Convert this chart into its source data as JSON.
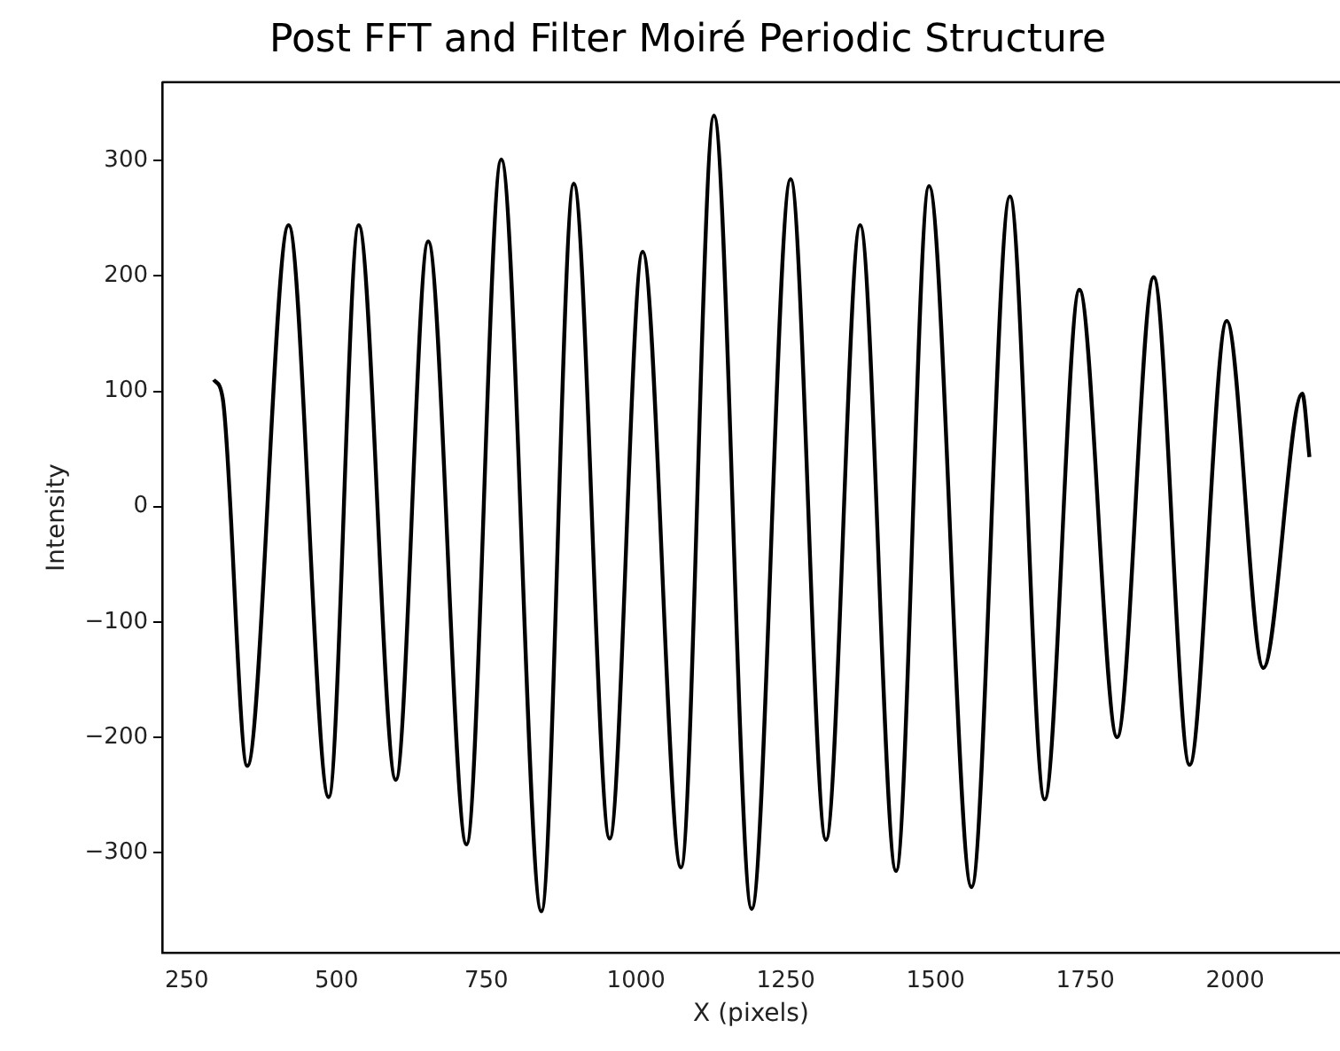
{
  "chart_data": {
    "type": "line",
    "title": "Post FFT and Filter Moiré Periodic Structure",
    "xlabel": "X (pixels)",
    "ylabel": "Intensity",
    "xlim": [
      209,
      2175
    ],
    "ylim": [
      -387,
      368
    ],
    "xticks": [
      250,
      500,
      750,
      1000,
      1250,
      1500,
      1750,
      2000
    ],
    "yticks": [
      -300,
      -200,
      -100,
      0,
      100,
      200,
      300
    ],
    "series": [
      {
        "color": "#000000",
        "x": [
          295,
          310,
          351,
          420,
          487,
          537,
          599,
          653,
          717,
          775,
          842,
          896,
          956,
          1011,
          1075,
          1130,
          1193,
          1258,
          1317,
          1374,
          1434,
          1489,
          1560,
          1624,
          1682,
          1740,
          1803,
          1864,
          1924,
          1986,
          2047,
          2112,
          2124
        ],
        "values": [
          110,
          94,
          -225,
          244,
          -252,
          244,
          -237,
          230,
          -293,
          301,
          -351,
          280,
          -288,
          221,
          -313,
          339,
          -349,
          284,
          -289,
          244,
          -316,
          278,
          -330,
          269,
          -254,
          188,
          -200,
          199,
          -224,
          161,
          -140,
          98,
          43
        ]
      }
    ]
  }
}
